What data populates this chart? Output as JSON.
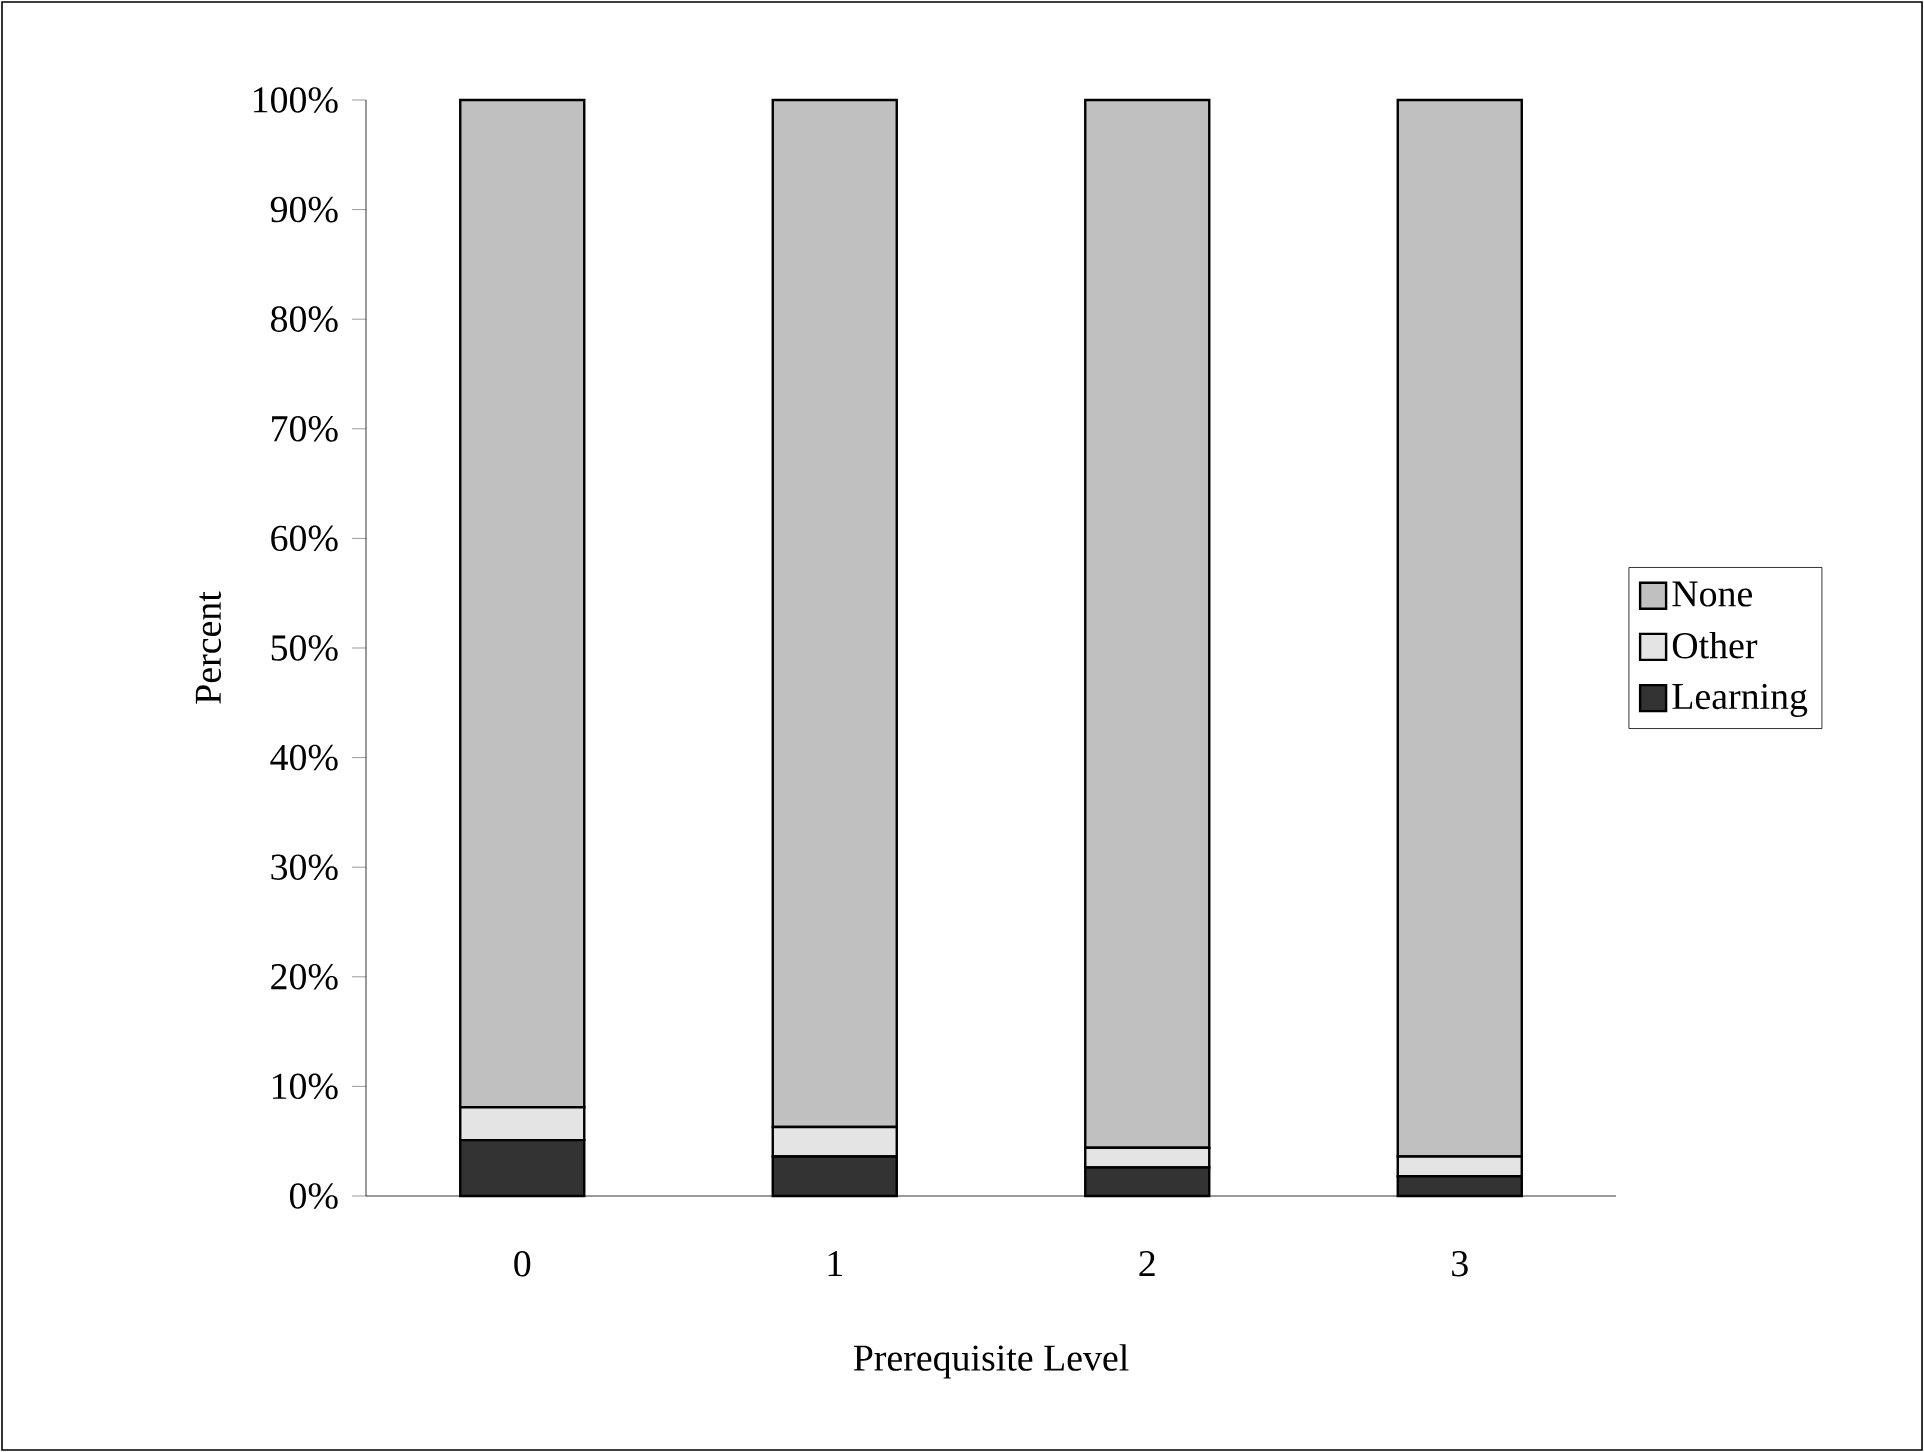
{
  "chart_data": {
    "type": "bar",
    "stacked": true,
    "xlabel": "Prerequisite Level",
    "ylabel": "Percent",
    "categories": [
      "0",
      "1",
      "2",
      "3"
    ],
    "series": [
      {
        "name": "Learning",
        "color": "#333333",
        "values": [
          5.1,
          3.6,
          2.6,
          1.8
        ]
      },
      {
        "name": "Other",
        "color": "#e4e4e4",
        "values": [
          3.0,
          2.7,
          1.8,
          1.8
        ]
      },
      {
        "name": "None",
        "color": "#c0c0c0",
        "values": [
          91.9,
          93.7,
          95.6,
          96.4
        ]
      }
    ],
    "ylim": [
      0,
      100
    ],
    "yticks": [
      {
        "value": 0,
        "label": "0%"
      },
      {
        "value": 10,
        "label": "10%"
      },
      {
        "value": 20,
        "label": "20%"
      },
      {
        "value": 30,
        "label": "30%"
      },
      {
        "value": 40,
        "label": "40%"
      },
      {
        "value": 50,
        "label": "50%"
      },
      {
        "value": 60,
        "label": "60%"
      },
      {
        "value": 70,
        "label": "70%"
      },
      {
        "value": 80,
        "label": "80%"
      },
      {
        "value": 90,
        "label": "90%"
      },
      {
        "value": 100,
        "label": "100%"
      }
    ],
    "legend": "right",
    "grid": false
  }
}
